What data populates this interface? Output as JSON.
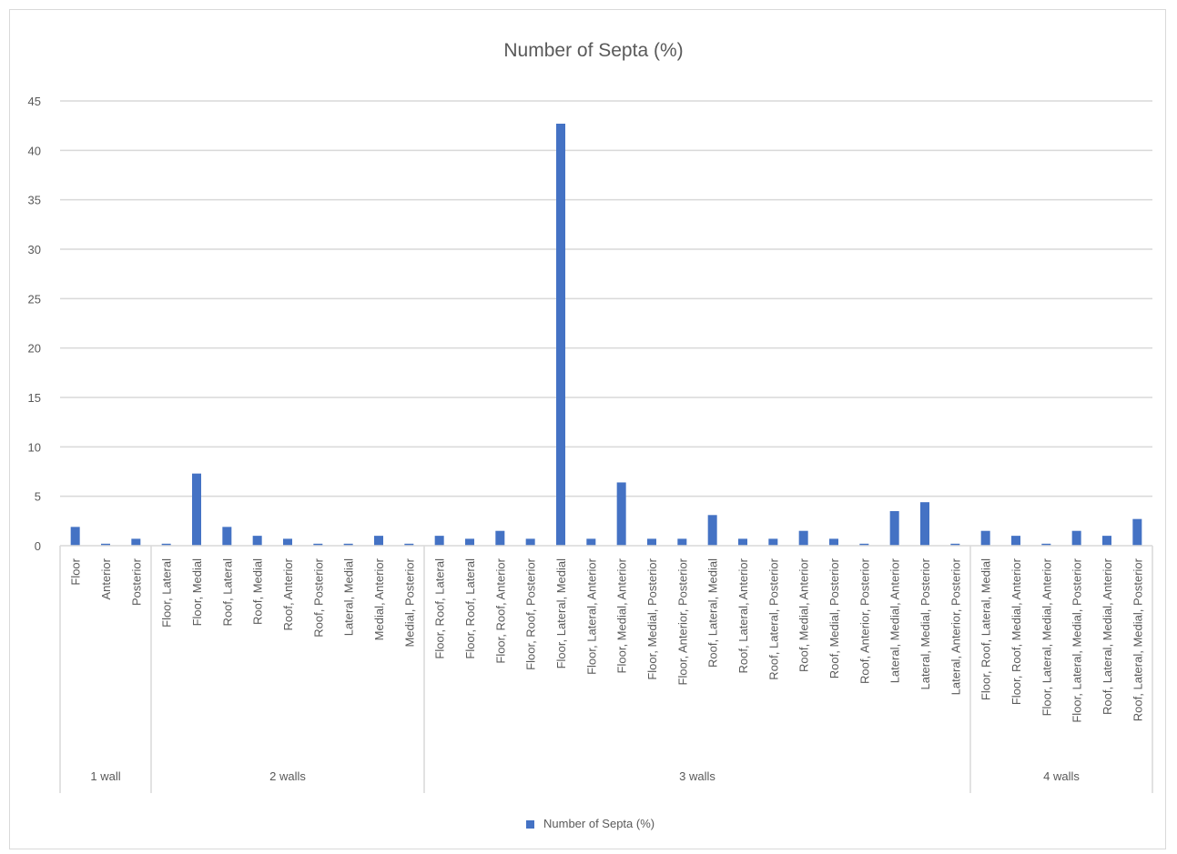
{
  "chart_data": {
    "type": "bar",
    "title": "Number of Septa (%)",
    "xlabel": "",
    "ylabel": "",
    "ylim": [
      0,
      45
    ],
    "yticks": [
      0,
      5,
      10,
      15,
      20,
      25,
      30,
      35,
      40,
      45
    ],
    "grid": true,
    "legend_position": "bottom",
    "colors": {
      "bar": "#4472c4",
      "grid": "#d9d9d9",
      "text": "#595959"
    },
    "groups": [
      {
        "label": "1 wall",
        "count": 3
      },
      {
        "label": "2 walls",
        "count": 9
      },
      {
        "label": "3 walls",
        "count": 18
      },
      {
        "label": "4 walls",
        "count": 6
      }
    ],
    "categories": [
      "Floor",
      "Anterior",
      "Posterior",
      "Floor, Lateral",
      "Floor, Medial",
      "Roof, Lateral",
      "Roof, Medial",
      "Roof, Anterior",
      "Roof, Posterior",
      "Lateral, Medial",
      "Medial, Anterior",
      "Medial, Posterior",
      "Floor, Roof, Lateral",
      "Floor, Roof, Lateral",
      "Floor, Roof, Anterior",
      "Floor, Roof, Posterior",
      "Floor, Lateral, Medial",
      "Floor, Lateral, Anterior",
      "Floor, Medial, Anterior",
      "Floor, Medial, Posterior",
      "Floor, Anterior, Posterior",
      "Roof, Lateral, Medial",
      "Roof, Lateral, Anterior",
      "Roof, Lateral, Posterior",
      "Roof, Medial, Anterior",
      "Roof, Medial, Posterior",
      "Roof, Anterior, Posterior",
      "Lateral, Medial, Anterior",
      "Lateral, Medial, Posterior",
      "Lateral, Anterior, Posterior",
      "Floor, Roof, Lateral, Medial",
      "Floor, Roof, Medial, Anterior",
      "Floor, Lateral, Medial, Anterior",
      "Floor, Lateral, Medial, Posterior",
      "Roof, Lateral, Medial, Anterior",
      "Roof, Lateral, Medial, Posterior"
    ],
    "series": [
      {
        "name": "Number of Septa (%)",
        "values": [
          1.9,
          0.2,
          0.7,
          0.2,
          7.3,
          1.9,
          1.0,
          0.7,
          0.2,
          0.2,
          1.0,
          0.2,
          1.0,
          0.7,
          1.5,
          0.7,
          42.7,
          0.7,
          6.4,
          0.7,
          0.7,
          3.1,
          0.7,
          0.7,
          1.5,
          0.7,
          0.2,
          3.5,
          4.4,
          0.2,
          1.5,
          1.0,
          0.2,
          1.5,
          1.0,
          2.7
        ]
      }
    ]
  }
}
